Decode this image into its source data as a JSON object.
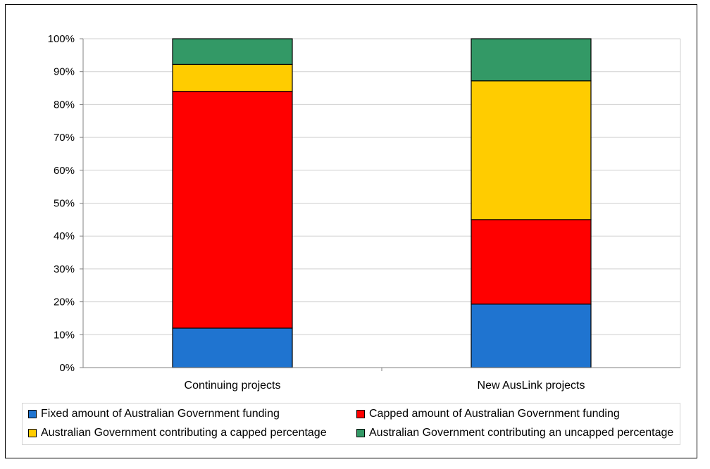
{
  "chart_data": {
    "type": "bar",
    "stacked": true,
    "percent": true,
    "categories": [
      "Continuing projects",
      "New AusLink projects"
    ],
    "series": [
      {
        "name": "Fixed amount of Australian Government funding",
        "color": "#1f74d0",
        "values": [
          12,
          19.3
        ]
      },
      {
        "name": "Capped amount of Australian Government funding",
        "color": "#ff0000",
        "values": [
          72,
          25.7
        ]
      },
      {
        "name": "Australian Government contributing a capped percentage",
        "color": "#ffcc00",
        "values": [
          8.2,
          42.2
        ]
      },
      {
        "name": "Australian Government contributing an uncapped percentage",
        "color": "#339966",
        "values": [
          7.8,
          12.8
        ]
      }
    ],
    "yticks": [
      "0%",
      "10%",
      "20%",
      "30%",
      "40%",
      "50%",
      "60%",
      "70%",
      "80%",
      "90%",
      "100%"
    ],
    "ylim": [
      0,
      100
    ],
    "grid": true,
    "legend_position": "bottom"
  }
}
